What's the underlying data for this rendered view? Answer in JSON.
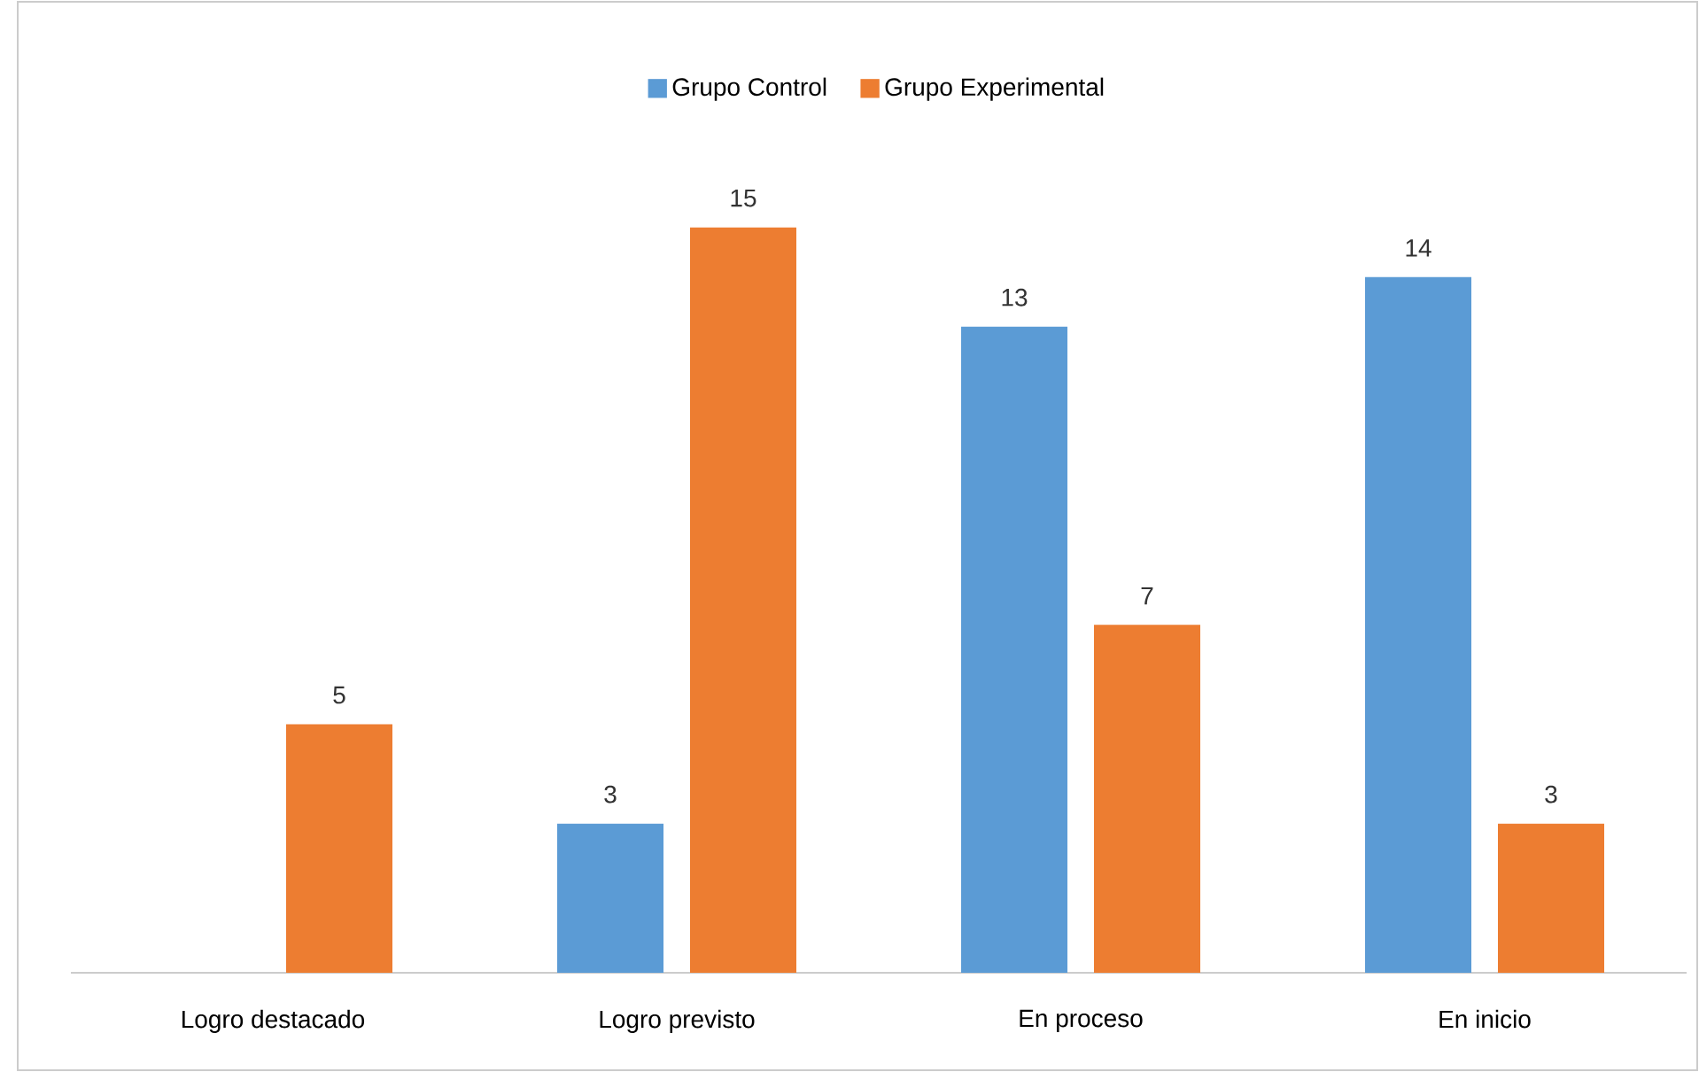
{
  "chart_data": {
    "type": "bar",
    "categories": [
      "Logro destacado",
      "Logro previsto",
      "En proceso",
      "En inicio"
    ],
    "series": [
      {
        "name": "Grupo Control",
        "color": "#5b9bd5",
        "values": [
          0,
          3,
          13,
          14
        ],
        "value_labels": [
          null,
          "3",
          "13",
          "14"
        ]
      },
      {
        "name": "Grupo Experimental",
        "color": "#ed7d31",
        "values": [
          5,
          15,
          7,
          3
        ],
        "value_labels": [
          "5",
          "15",
          "7",
          "3"
        ]
      }
    ],
    "tick_labels": "x",
    "legend": "top"
  }
}
